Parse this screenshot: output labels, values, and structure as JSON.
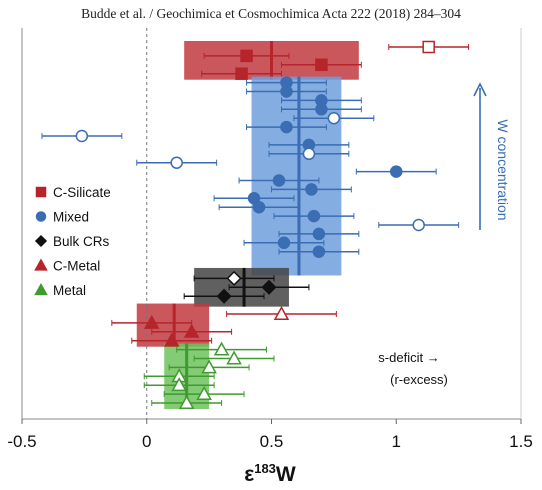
{
  "header": "Budde et al. / Geochimica et Cosmochimica Acta 222 (2018) 284–304",
  "chart_data": {
    "type": "scatter",
    "xlabel_main": "ε",
    "xlabel_sup": "183",
    "xlabel_tail": "W",
    "xlim": [
      -0.5,
      1.5
    ],
    "xticks": [
      "-0.5",
      "0",
      "0.5",
      "1",
      "1.5"
    ],
    "xtick_values": [
      -0.5,
      0,
      0.5,
      1,
      1.5
    ],
    "vline_dashed_at": 0,
    "grid": false,
    "colors": {
      "c_silicate": "#b5252b",
      "mixed": "#3a6db3",
      "bulk_crs": "#111111",
      "c_metal": "#b5252b",
      "metal": "#3f9a2f"
    },
    "legend": {
      "placement": "left",
      "items": [
        {
          "label": "C-Silicate",
          "marker": "square",
          "color": "#b5252b"
        },
        {
          "label": "Mixed",
          "marker": "circle",
          "color": "#3a6db3"
        },
        {
          "label": "Bulk CRs",
          "marker": "diamond",
          "color": "#111111"
        },
        {
          "label": "C-Metal",
          "marker": "triangle",
          "color": "#b5252b"
        },
        {
          "label": "Metal",
          "marker": "triangle",
          "color": "#3f9a2f"
        }
      ]
    },
    "annotations": {
      "arrow_label": "W concentration",
      "s_deficit": "s-deficit →",
      "r_excess": "(r-excess)"
    },
    "groups": [
      {
        "name": "C-Silicate",
        "marker": "square",
        "color": "#b5252b",
        "fill_band": "#c0393f",
        "mean": 0.5,
        "band_x": [
          0.15,
          0.85
        ],
        "rank_range": [
          1,
          4
        ],
        "points": [
          {
            "x": 1.13,
            "err": 0.16,
            "rank": 1,
            "open": true
          },
          {
            "x": 0.4,
            "err": 0.17,
            "rank": 2,
            "open": false
          },
          {
            "x": 0.7,
            "err": 0.16,
            "rank": 3,
            "open": false
          },
          {
            "x": 0.38,
            "err": 0.16,
            "rank": 4,
            "open": false
          }
        ]
      },
      {
        "name": "Mixed",
        "marker": "circle",
        "color": "#3a6db3",
        "fill_band": "#6f9fdc",
        "mean": 0.61,
        "band_x": [
          0.42,
          0.78
        ],
        "rank_range": [
          5,
          26
        ],
        "points": [
          {
            "x": 0.56,
            "err": 0.16,
            "rank": 5,
            "open": false
          },
          {
            "x": 0.56,
            "err": 0.16,
            "rank": 6,
            "open": false
          },
          {
            "x": 0.7,
            "err": 0.16,
            "rank": 7,
            "open": false
          },
          {
            "x": 0.7,
            "err": 0.16,
            "rank": 8,
            "open": false
          },
          {
            "x": 0.75,
            "err": 0.16,
            "rank": 9,
            "open": true
          },
          {
            "x": 0.56,
            "err": 0.16,
            "rank": 10,
            "open": false
          },
          {
            "x": -0.26,
            "err": 0.16,
            "rank": 11,
            "open": true
          },
          {
            "x": 0.65,
            "err": 0.16,
            "rank": 12,
            "open": false
          },
          {
            "x": 0.65,
            "err": 0.16,
            "rank": 13,
            "open": true
          },
          {
            "x": 0.12,
            "err": 0.16,
            "rank": 14,
            "open": true
          },
          {
            "x": 1.0,
            "err": 0.16,
            "rank": 15,
            "open": false
          },
          {
            "x": 0.53,
            "err": 0.16,
            "rank": 16,
            "open": false
          },
          {
            "x": 0.66,
            "err": 0.16,
            "rank": 17,
            "open": false
          },
          {
            "x": 0.43,
            "err": 0.16,
            "rank": 18,
            "open": false
          },
          {
            "x": 0.45,
            "err": 0.16,
            "rank": 19,
            "open": false
          },
          {
            "x": 0.67,
            "err": 0.16,
            "rank": 20,
            "open": false
          },
          {
            "x": 1.09,
            "err": 0.16,
            "rank": 21,
            "open": true
          },
          {
            "x": 0.69,
            "err": 0.16,
            "rank": 22,
            "open": false
          },
          {
            "x": 0.55,
            "err": 0.16,
            "rank": 23,
            "open": false
          },
          {
            "x": 0.69,
            "err": 0.16,
            "rank": 24,
            "open": false
          }
        ]
      },
      {
        "name": "Bulk CRs",
        "marker": "diamond",
        "color": "#111111",
        "fill_band": "#444444",
        "mean": 0.39,
        "band_x": [
          0.19,
          0.57
        ],
        "rank_range": [
          26.5,
          29.5
        ],
        "points": [
          {
            "x": 0.35,
            "err": 0.16,
            "rank": 27,
            "open": true
          },
          {
            "x": 0.49,
            "err": 0.16,
            "rank": 28,
            "open": false
          },
          {
            "x": 0.31,
            "err": 0.16,
            "rank": 29,
            "open": false
          }
        ]
      },
      {
        "name": "C-Metal",
        "marker": "triangle",
        "color": "#b5252b",
        "fill_band": "#c0393f",
        "mean": 0.11,
        "band_x": [
          -0.04,
          0.25
        ],
        "rank_range": [
          30.5,
          34
        ],
        "points": [
          {
            "x": 0.54,
            "err": 0.22,
            "rank": 31,
            "open": true
          },
          {
            "x": 0.02,
            "err": 0.16,
            "rank": 32,
            "open": false
          },
          {
            "x": 0.18,
            "err": 0.16,
            "rank": 33,
            "open": false
          },
          {
            "x": 0.1,
            "err": 0.16,
            "rank": 34,
            "open": false
          }
        ]
      },
      {
        "name": "Metal",
        "marker": "triangle",
        "color": "#3f9a2f",
        "fill_band": "#6dc25c",
        "mean": 0.16,
        "band_x": [
          0.07,
          0.25
        ],
        "rank_range": [
          35,
          41
        ],
        "points": [
          {
            "x": 0.3,
            "err": 0.18,
            "rank": 35,
            "open": true
          },
          {
            "x": 0.35,
            "err": 0.16,
            "rank": 36,
            "open": true
          },
          {
            "x": 0.25,
            "err": 0.16,
            "rank": 37,
            "open": true
          },
          {
            "x": 0.13,
            "err": 0.14,
            "rank": 38,
            "open": true
          },
          {
            "x": 0.13,
            "err": 0.14,
            "rank": 39,
            "open": true
          },
          {
            "x": 0.23,
            "err": 0.16,
            "rank": 40,
            "open": true
          },
          {
            "x": 0.16,
            "err": 0.14,
            "rank": 41,
            "open": true
          }
        ]
      }
    ]
  }
}
